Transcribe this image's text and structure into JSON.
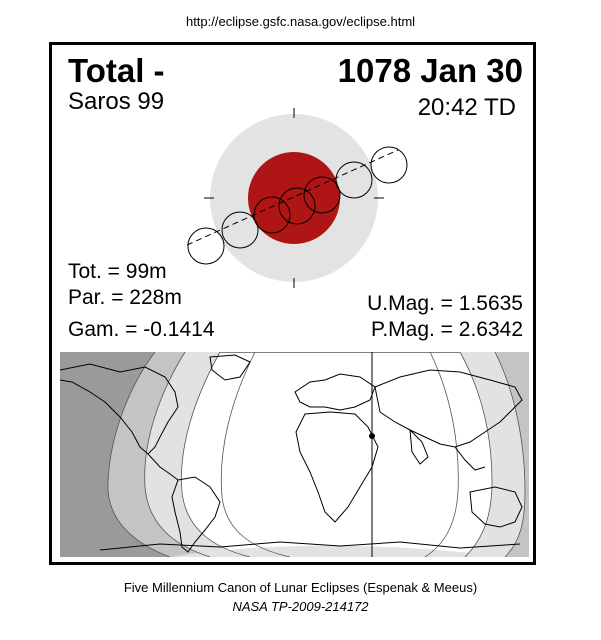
{
  "header": {
    "url": "http://eclipse.gsfc.nasa.gov/eclipse.html"
  },
  "eclipse": {
    "type": "Total  -",
    "date": "1078 Jan 30",
    "saros": "Saros  99",
    "time": "20:42 TD",
    "tot": "Tot. =  99m",
    "par": "Par. = 228m",
    "gam": "Gam. = -0.1414",
    "umag": "U.Mag. = 1.5635",
    "pmag": "P.Mag. = 2.6342"
  },
  "footer": {
    "line1": "Five Millennium Canon of Lunar Eclipses (Espenak & Meeus)",
    "line2": "NASA TP-2009-214172"
  },
  "colors": {
    "umbra": "#b01515",
    "penumbra": "#e3e3e3",
    "map_dark": "#9a9a9a",
    "map_mid": "#c4c4c4",
    "map_light": "#e2e2e2",
    "map_visible": "#ffffff"
  }
}
